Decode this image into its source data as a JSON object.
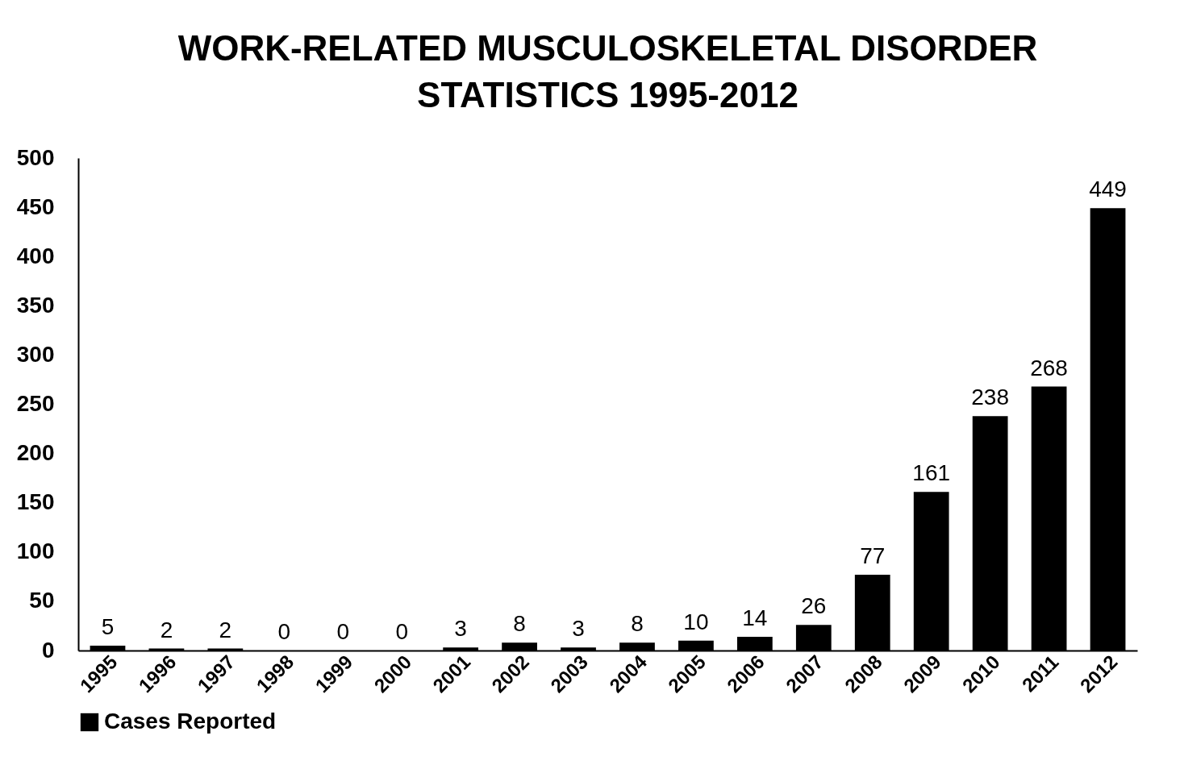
{
  "chart_data": {
    "type": "bar",
    "title": "WORK-RELATED MUSCULOSKELETAL DISORDER STATISTICS 1995-2012",
    "categories": [
      "1995",
      "1996",
      "1997",
      "1998",
      "1999",
      "2000",
      "2001",
      "2002",
      "2003",
      "2004",
      "2005",
      "2006",
      "2007",
      "2008",
      "2009",
      "2010",
      "2011",
      "2012"
    ],
    "series": [
      {
        "name": "Cases Reported",
        "color": "#000000",
        "values": [
          5,
          2,
          2,
          0,
          0,
          0,
          3,
          8,
          3,
          8,
          10,
          14,
          26,
          77,
          161,
          238,
          268,
          449
        ]
      }
    ],
    "ylim": [
      0,
      500
    ],
    "yticks": [
      0,
      50,
      100,
      150,
      200,
      250,
      300,
      350,
      400,
      450,
      500
    ],
    "data_labels": true,
    "grid": false,
    "legend": "bottom"
  }
}
